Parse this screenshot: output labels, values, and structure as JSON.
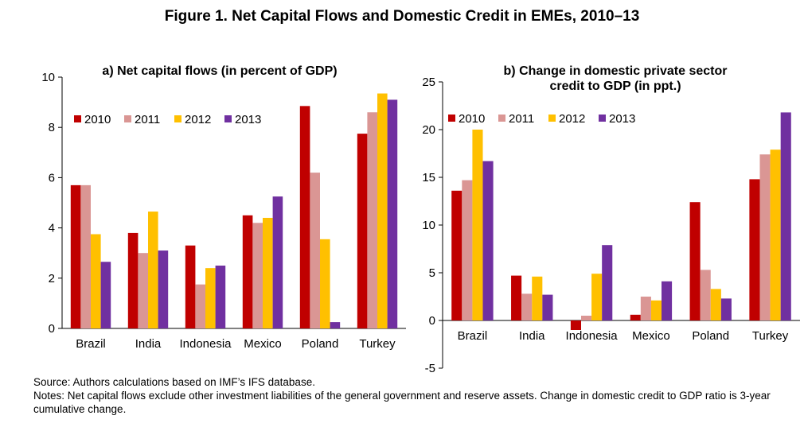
{
  "figure": {
    "title": "Figure 1. Net Capital Flows and Domestic Credit in EMEs, 2010–13",
    "source": "Source: Authors calculations based on IMF’s IFS database.",
    "notes": "Notes: Net capital flows exclude other investment liabilities of the general government and reserve assets. Change in domestic credit to GDP ratio is 3-year cumulative change."
  },
  "chart_data": [
    {
      "type": "bar",
      "title": "a) Net capital flows (in percent of GDP)",
      "categories": [
        "Brazil",
        "India",
        "Indonesia",
        "Mexico",
        "Poland",
        "Turkey"
      ],
      "ylim": [
        0,
        10
      ],
      "yticks": [
        "0",
        "2",
        "4",
        "6",
        "8",
        "10"
      ],
      "grid": false,
      "legend_position": "top-left",
      "series": [
        {
          "name": "2010",
          "color": "#C00000",
          "values": [
            5.7,
            3.8,
            3.3,
            4.5,
            8.85,
            7.75
          ]
        },
        {
          "name": "2011",
          "color": "#DA9694",
          "values": [
            5.7,
            3.0,
            1.75,
            4.2,
            6.2,
            8.6
          ]
        },
        {
          "name": "2012",
          "color": "#FFC000",
          "values": [
            3.75,
            4.65,
            2.4,
            4.4,
            3.55,
            9.35
          ]
        },
        {
          "name": "2013",
          "color": "#7030A0",
          "values": [
            2.65,
            3.1,
            2.5,
            5.25,
            0.25,
            9.1
          ]
        }
      ]
    },
    {
      "type": "bar",
      "title": "b) Change in domestic private sector credit to GDP (in ppt.)",
      "title_lines": [
        "b) Change in domestic private sector",
        "credit to GDP (in ppt.)"
      ],
      "categories": [
        "Brazil",
        "India",
        "Indonesia",
        "Mexico",
        "Poland",
        "Turkey"
      ],
      "ylim": [
        -5,
        25
      ],
      "yticks": [
        "-5",
        "0",
        "5",
        "10",
        "15",
        "20",
        "25"
      ],
      "grid": false,
      "legend_position": "top-left",
      "series": [
        {
          "name": "2010",
          "color": "#C00000",
          "values": [
            13.6,
            4.7,
            -1.0,
            0.6,
            12.4,
            14.8
          ]
        },
        {
          "name": "2011",
          "color": "#DA9694",
          "values": [
            14.7,
            2.8,
            0.5,
            2.5,
            5.3,
            17.4
          ]
        },
        {
          "name": "2012",
          "color": "#FFC000",
          "values": [
            20.0,
            4.6,
            4.9,
            2.1,
            3.3,
            17.9
          ]
        },
        {
          "name": "2013",
          "color": "#7030A0",
          "values": [
            16.7,
            2.7,
            7.9,
            4.1,
            2.3,
            21.8
          ]
        }
      ]
    }
  ]
}
